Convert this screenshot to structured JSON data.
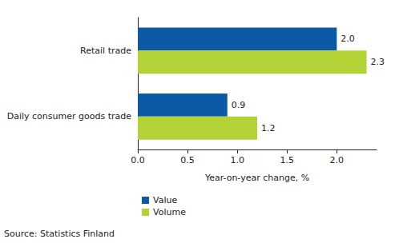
{
  "chart_data": {
    "type": "bar",
    "orientation": "horizontal",
    "categories": [
      "Retail trade",
      "Daily consumer goods trade"
    ],
    "series": [
      {
        "name": "Value",
        "color": "#0c5aa6",
        "values": [
          2.0,
          0.9
        ],
        "value_labels": [
          "2.0",
          "0.9"
        ]
      },
      {
        "name": "Volume",
        "color": "#b2d235",
        "values": [
          2.3,
          1.2
        ],
        "value_labels": [
          "2.3",
          "1.2"
        ]
      }
    ],
    "x_label": "Year-on-year change, %",
    "xlim": [
      0,
      2.4
    ],
    "xticks": [
      {
        "value": 0,
        "label": "0.0"
      },
      0.5,
      {
        "value": 1,
        "label": "1.0"
      },
      1.5,
      {
        "value": 2,
        "label": "2.0"
      }
    ],
    "data_labels": true,
    "grid": false,
    "legend": "bottom left",
    "annotations": [
      "Source: Statistics Finland"
    ]
  }
}
